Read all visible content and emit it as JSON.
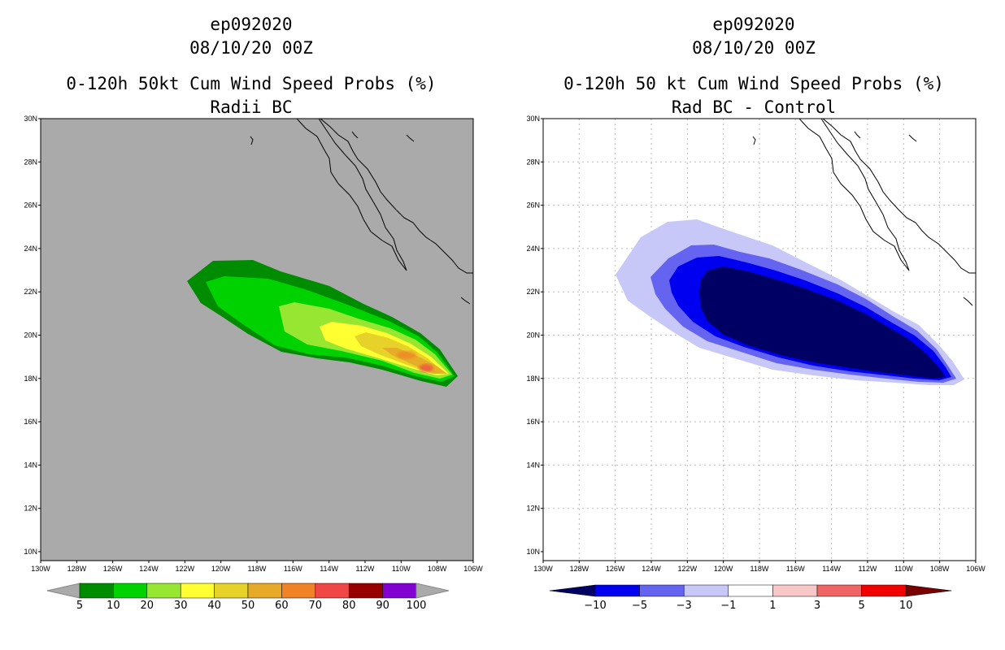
{
  "left_panel": {
    "storm_id": "ep092020",
    "datetime": "08/10/20 00Z",
    "title": "0-120h 50kt Cum Wind Speed Probs (%)",
    "subtitle": "Radii BC",
    "colorbar": {
      "labels": [
        "5",
        "10",
        "20",
        "30",
        "40",
        "50",
        "60",
        "70",
        "80",
        "90",
        "100"
      ],
      "colors": [
        "#008c00",
        "#00d200",
        "#96e632",
        "#ffff32",
        "#e6d228",
        "#e6aa28",
        "#f08228",
        "#f04646",
        "#960000",
        "#8200d2"
      ]
    }
  },
  "right_panel": {
    "storm_id": "ep092020",
    "datetime": "08/10/20 00Z",
    "title": "0-120h 50 kt Cum Wind Speed Probs (%)",
    "subtitle": "Rad BC - Control",
    "colorbar": {
      "labels": [
        "−10",
        "−5",
        "−3",
        "−1",
        "1",
        "3",
        "5",
        "10"
      ],
      "colors": [
        "#000064",
        "#0000f0",
        "#6464f0",
        "#c8c8f8",
        "#ffffff",
        "#f8c8c8",
        "#f06464",
        "#f00000",
        "#780000"
      ]
    }
  },
  "axes": {
    "lat_labels": [
      "30N",
      "28N",
      "26N",
      "24N",
      "22N",
      "20N",
      "18N",
      "16N",
      "14N",
      "12N",
      "10N"
    ],
    "lon_labels": [
      "130W",
      "128W",
      "126W",
      "124W",
      "122W",
      "120W",
      "118W",
      "116W",
      "114W",
      "112W",
      "110W",
      "108W",
      "106W"
    ]
  },
  "colors": {
    "background_left": "#aaaaaa",
    "coast": "#000000",
    "grid": "#bbbbbb"
  }
}
